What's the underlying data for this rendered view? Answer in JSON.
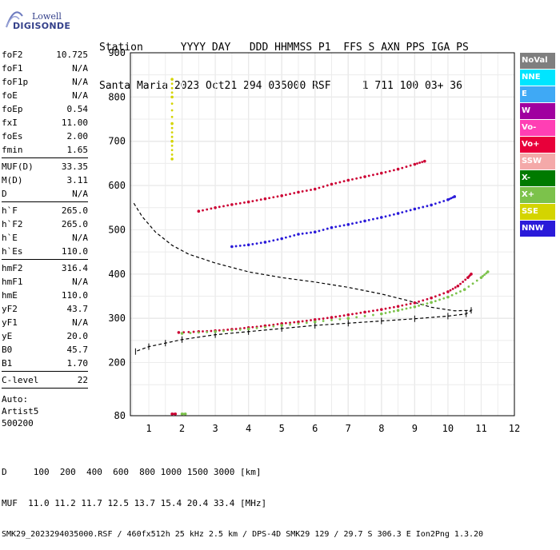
{
  "logo": {
    "line1": "Lowell",
    "line2": "DIGISONDE"
  },
  "header": {
    "line1": "Station      YYYY DAY   DDD HHMMSS P1  FFS S AXN PPS IGA PS",
    "line2": "Santa Maria 2023 Oct21 294 035000 RSF     1 711 100 03+ 36"
  },
  "params": {
    "group1": [
      {
        "k": "foF2",
        "v": "10.725"
      },
      {
        "k": "foF1",
        "v": "N/A"
      },
      {
        "k": "foF1p",
        "v": "N/A"
      },
      {
        "k": "foE",
        "v": "N/A"
      },
      {
        "k": "foEp",
        "v": "0.54"
      },
      {
        "k": "fxI",
        "v": "11.00"
      },
      {
        "k": "foEs",
        "v": "2.00"
      },
      {
        "k": "fmin",
        "v": "1.65"
      }
    ],
    "group2": [
      {
        "k": "MUF(D)",
        "v": "33.35"
      },
      {
        "k": "M(D)",
        "v": "3.11"
      },
      {
        "k": "D",
        "v": "N/A"
      }
    ],
    "group3": [
      {
        "k": "h`F",
        "v": "265.0"
      },
      {
        "k": "h`F2",
        "v": "265.0"
      },
      {
        "k": "h`E",
        "v": "N/A"
      },
      {
        "k": "h`Es",
        "v": "110.0"
      }
    ],
    "group4": [
      {
        "k": "hmF2",
        "v": "316.4"
      },
      {
        "k": "hmF1",
        "v": "N/A"
      },
      {
        "k": "hmE",
        "v": "110.0"
      },
      {
        "k": "yF2",
        "v": "43.7"
      },
      {
        "k": "yF1",
        "v": "N/A"
      },
      {
        "k": "yE",
        "v": "20.0"
      },
      {
        "k": "B0",
        "v": "45.7"
      },
      {
        "k": "B1",
        "v": "1.70"
      }
    ],
    "group5": [
      {
        "k": "C-level",
        "v": "22"
      }
    ],
    "autoscaling": {
      "line1": "Auto:",
      "line2": "Artist5",
      "line3": "500200"
    }
  },
  "legend": [
    {
      "label": "NoVal",
      "bg": "#7f7f7f",
      "fg": "#ffffff"
    },
    {
      "label": "NNE",
      "bg": "#00e5ff",
      "fg": "#ffffff"
    },
    {
      "label": "E",
      "bg": "#3fa9f5",
      "fg": "#ffffff"
    },
    {
      "label": "W",
      "bg": "#a0009f",
      "fg": "#ffffff"
    },
    {
      "label": "Vo-",
      "bg": "#ff3fb4",
      "fg": "#ffffff"
    },
    {
      "label": "Vo+",
      "bg": "#e8003a",
      "fg": "#ffffff"
    },
    {
      "label": "SSW",
      "bg": "#f4a9a9",
      "fg": "#ffffff"
    },
    {
      "label": "X-",
      "bg": "#007a00",
      "fg": "#ffffff"
    },
    {
      "label": "X+",
      "bg": "#7cc24b",
      "fg": "#ffffff"
    },
    {
      "label": "SSE",
      "bg": "#d4d400",
      "fg": "#ffffff"
    },
    {
      "label": "NNW",
      "bg": "#2a1ad9",
      "fg": "#ffffff"
    }
  ],
  "chart_data": {
    "type": "scatter",
    "title": "",
    "xlabel": "",
    "ylabel": "",
    "xlim": [
      0.5,
      12
    ],
    "ylim": [
      80,
      900
    ],
    "xticks": [
      1,
      2,
      3,
      4,
      5,
      6,
      7,
      8,
      9,
      10,
      11,
      12
    ],
    "yticks": [
      80,
      200,
      300,
      400,
      500,
      600,
      700,
      800,
      900
    ],
    "grid": true,
    "series": [
      {
        "name": "Vo+",
        "color": "#cc0033",
        "points": [
          [
            1.9,
            268
          ],
          [
            2.5,
            270
          ],
          [
            3.0,
            272
          ],
          [
            3.5,
            275
          ],
          [
            4.0,
            279
          ],
          [
            4.5,
            283
          ],
          [
            5.0,
            288
          ],
          [
            5.5,
            292
          ],
          [
            6.0,
            297
          ],
          [
            6.5,
            302
          ],
          [
            7.0,
            308
          ],
          [
            7.5,
            314
          ],
          [
            8.0,
            320
          ],
          [
            8.5,
            327
          ],
          [
            9.0,
            335
          ],
          [
            9.5,
            346
          ],
          [
            10.0,
            360
          ],
          [
            10.3,
            373
          ],
          [
            10.6,
            392
          ],
          [
            10.7,
            400
          ]
        ]
      },
      {
        "name": "X+",
        "color": "#7cc24b",
        "points": [
          [
            2.0,
            266
          ],
          [
            3.0,
            270
          ],
          [
            4.0,
            276
          ],
          [
            5.0,
            284
          ],
          [
            6.0,
            292
          ],
          [
            7.0,
            300
          ],
          [
            8.0,
            310
          ],
          [
            8.5,
            318
          ],
          [
            9.0,
            326
          ],
          [
            9.5,
            336
          ],
          [
            10.0,
            348
          ],
          [
            10.5,
            365
          ],
          [
            11.0,
            392
          ],
          [
            11.2,
            405
          ]
        ]
      },
      {
        "name": "Vo+",
        "color": "#cc0033",
        "points": [
          [
            2.5,
            542
          ],
          [
            3.0,
            550
          ],
          [
            3.5,
            557
          ],
          [
            4.0,
            563
          ],
          [
            4.5,
            570
          ],
          [
            5.0,
            577
          ],
          [
            5.5,
            585
          ],
          [
            6.0,
            592
          ],
          [
            6.5,
            603
          ],
          [
            7.0,
            612
          ],
          [
            7.5,
            620
          ],
          [
            8.0,
            628
          ],
          [
            8.5,
            637
          ],
          [
            9.0,
            648
          ],
          [
            9.3,
            655
          ]
        ]
      },
      {
        "name": "NNW",
        "color": "#2a1ad9",
        "points": [
          [
            3.5,
            462
          ],
          [
            4.0,
            466
          ],
          [
            4.5,
            472
          ],
          [
            5.0,
            480
          ],
          [
            5.5,
            490
          ],
          [
            6.0,
            495
          ],
          [
            6.5,
            505
          ],
          [
            7.0,
            512
          ],
          [
            7.5,
            520
          ],
          [
            8.0,
            528
          ],
          [
            8.5,
            537
          ],
          [
            9.0,
            547
          ],
          [
            9.5,
            556
          ],
          [
            10.0,
            568
          ],
          [
            10.2,
            575
          ]
        ]
      },
      {
        "name": "Vo+",
        "color": "#cc0033",
        "points": [
          [
            1.7,
            84
          ],
          [
            1.8,
            84
          ]
        ]
      },
      {
        "name": "X+",
        "color": "#7cc24b",
        "points": [
          [
            2.0,
            84
          ],
          [
            2.1,
            84
          ]
        ]
      },
      {
        "name": "SSE",
        "color": "#d4d400",
        "points": [
          [
            1.7,
            660
          ],
          [
            1.7,
            700
          ],
          [
            1.7,
            740
          ],
          [
            1.7,
            800
          ],
          [
            1.7,
            840
          ]
        ]
      }
    ],
    "profile": {
      "name": "",
      "color": "#000000",
      "points": [
        [
          0.55,
          560
        ],
        [
          0.8,
          530
        ],
        [
          1.2,
          495
        ],
        [
          1.7,
          465
        ],
        [
          2.2,
          445
        ],
        [
          3.0,
          425
        ],
        [
          4.0,
          405
        ],
        [
          5.0,
          392
        ],
        [
          6.0,
          382
        ],
        [
          7.0,
          370
        ],
        [
          8.0,
          355
        ],
        [
          8.8,
          340
        ],
        [
          9.5,
          325
        ],
        [
          10.2,
          317
        ],
        [
          10.7,
          318
        ],
        [
          10.55,
          310
        ],
        [
          10.0,
          305
        ],
        [
          9.0,
          299
        ],
        [
          8.0,
          294
        ],
        [
          7.0,
          289
        ],
        [
          6.0,
          284
        ],
        [
          5.0,
          277
        ],
        [
          4.0,
          270
        ],
        [
          3.0,
          263
        ],
        [
          2.0,
          252
        ],
        [
          1.5,
          244
        ],
        [
          1.0,
          236
        ],
        [
          0.6,
          225
        ]
      ]
    }
  },
  "footer": {
    "line1": "D     100  200  400  600  800 1000 1500 3000 [km]",
    "line2": "MUF  11.0 11.2 11.7 12.5 13.7 15.4 20.4 33.4 [MHz]",
    "line3": "SMK29_2023294035000.RSF / 460fx512h 25 kHz 2.5 km / DPS-4D SMK29 129 / 29.7 S 306.3 E Ion2Png 1.3.20"
  }
}
